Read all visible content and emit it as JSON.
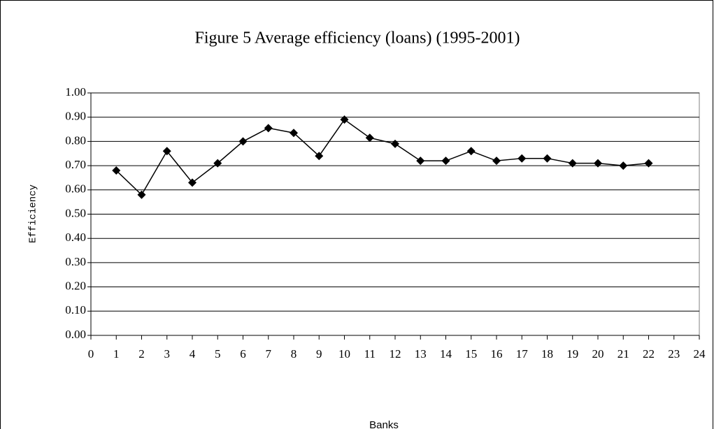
{
  "chart_data": {
    "type": "line",
    "title": "Figure 5 Average efficiency (loans) (1995-2001)",
    "x_label": "Banks",
    "y_label": "Efficiency",
    "x": [
      1,
      2,
      3,
      4,
      5,
      6,
      7,
      8,
      9,
      10,
      11,
      12,
      13,
      14,
      15,
      16,
      17,
      18,
      19,
      20,
      21,
      22
    ],
    "series": [
      {
        "name": "Efficiency",
        "color": "#000000",
        "values": [
          0.68,
          0.58,
          0.76,
          0.63,
          0.71,
          0.8,
          0.855,
          0.835,
          0.74,
          0.89,
          0.815,
          0.79,
          0.72,
          0.72,
          0.76,
          0.72,
          0.73,
          0.73,
          0.71,
          0.71,
          0.7,
          0.71
        ]
      }
    ],
    "xlim": [
      0,
      24
    ],
    "xticks": [
      0,
      1,
      2,
      3,
      4,
      5,
      6,
      7,
      8,
      9,
      10,
      11,
      12,
      13,
      14,
      15,
      16,
      17,
      18,
      19,
      20,
      21,
      22,
      23,
      24
    ],
    "ylim": [
      0,
      1
    ],
    "yticks": [
      {
        "value": 0,
        "label": "0.00"
      },
      {
        "value": 0.1,
        "label": "0.10"
      },
      {
        "value": 0.2,
        "label": "0.20"
      },
      {
        "value": 0.3,
        "label": "0.30"
      },
      {
        "value": 0.4,
        "label": "0.40"
      },
      {
        "value": 0.5,
        "label": "0.50"
      },
      {
        "value": 0.6,
        "label": "0.60"
      },
      {
        "value": 0.7,
        "label": "0.70"
      },
      {
        "value": 0.8,
        "label": "0.80"
      },
      {
        "value": 0.9,
        "label": "0.90"
      },
      {
        "value": 1,
        "label": "1.00"
      }
    ],
    "grid": true,
    "marker": "diamond"
  }
}
